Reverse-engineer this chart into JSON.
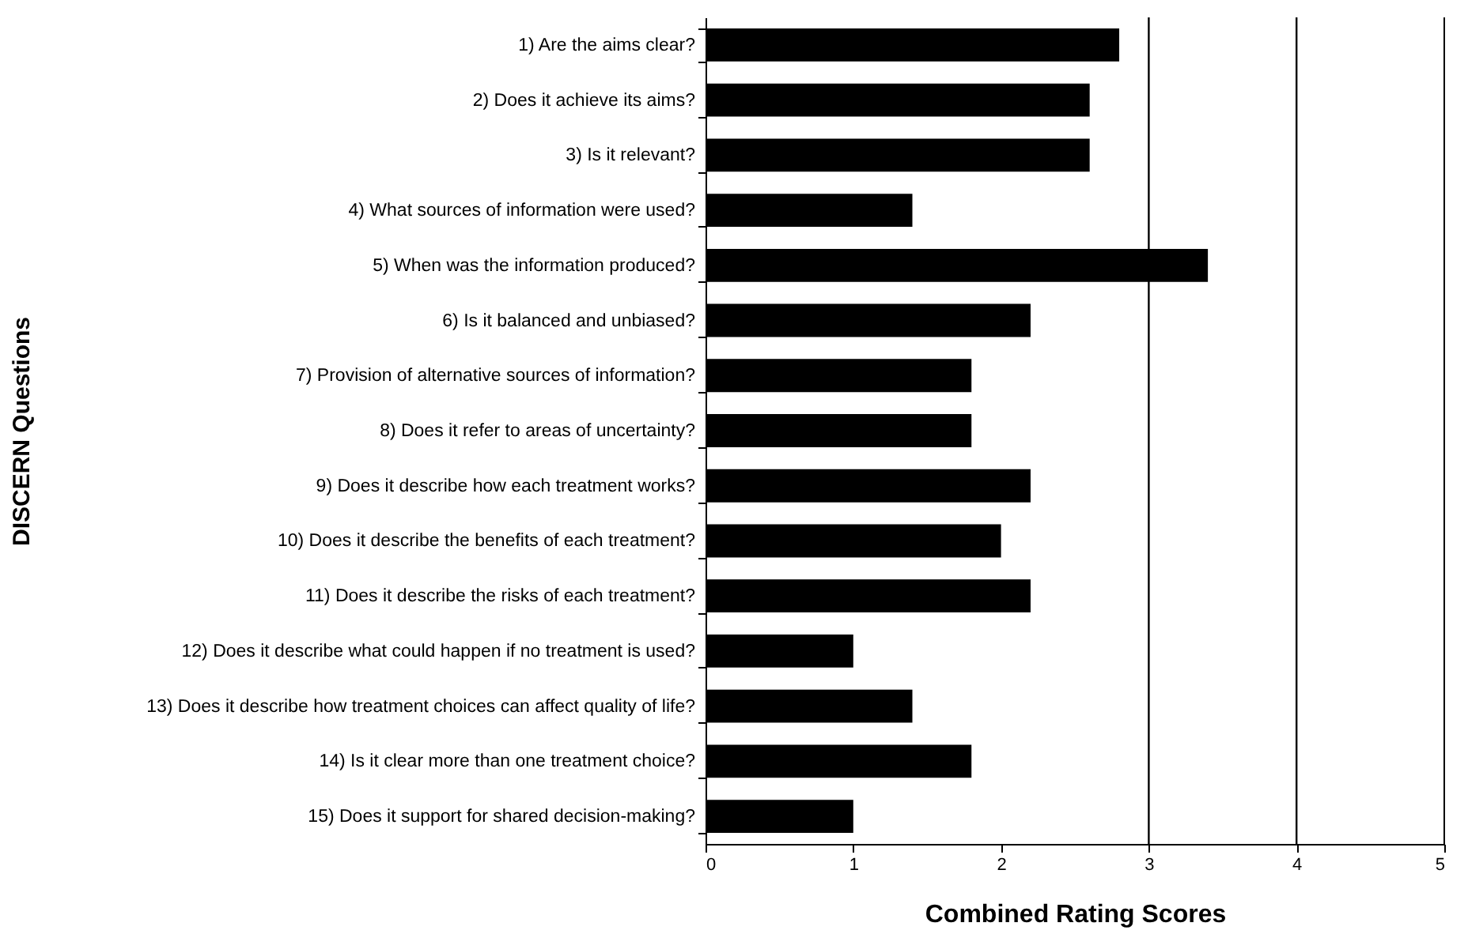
{
  "chart_data": {
    "type": "bar",
    "orientation": "horizontal",
    "xlabel": "Combined Rating Scores",
    "ylabel": "DISCERN Questions",
    "categories": [
      "1) Are the aims clear?",
      "2) Does it achieve its aims?",
      "3) Is it relevant?",
      "4) What sources of information were used?",
      "5) When was the information produced?",
      "6) Is it balanced and unbiased?",
      "7) Provision of alternative sources of information?",
      "8) Does it refer to areas of uncertainty?",
      "9) Does it describe how each treatment works?",
      "10) Does it describe the benefits of each treatment?",
      "11) Does it describe the risks of each treatment?",
      "12)  Does it describe what could happen if no treatment is used?",
      "13) Does it describe how treatment choices can affect quality of life?",
      "14) Is it clear more than one treatment choice?",
      "15) Does it support for shared decision-making?"
    ],
    "values": [
      2.8,
      2.6,
      2.6,
      1.4,
      3.4,
      2.2,
      1.8,
      1.8,
      2.2,
      2.0,
      2.2,
      1.0,
      1.4,
      1.8,
      1.0
    ],
    "color": "#000000",
    "xlim": [
      0,
      5
    ],
    "xticks": [
      0,
      1,
      2,
      3,
      4,
      5
    ],
    "ref_lines": [
      {
        "axis": "x",
        "value": 3
      },
      {
        "axis": "x",
        "value": 4
      }
    ]
  }
}
